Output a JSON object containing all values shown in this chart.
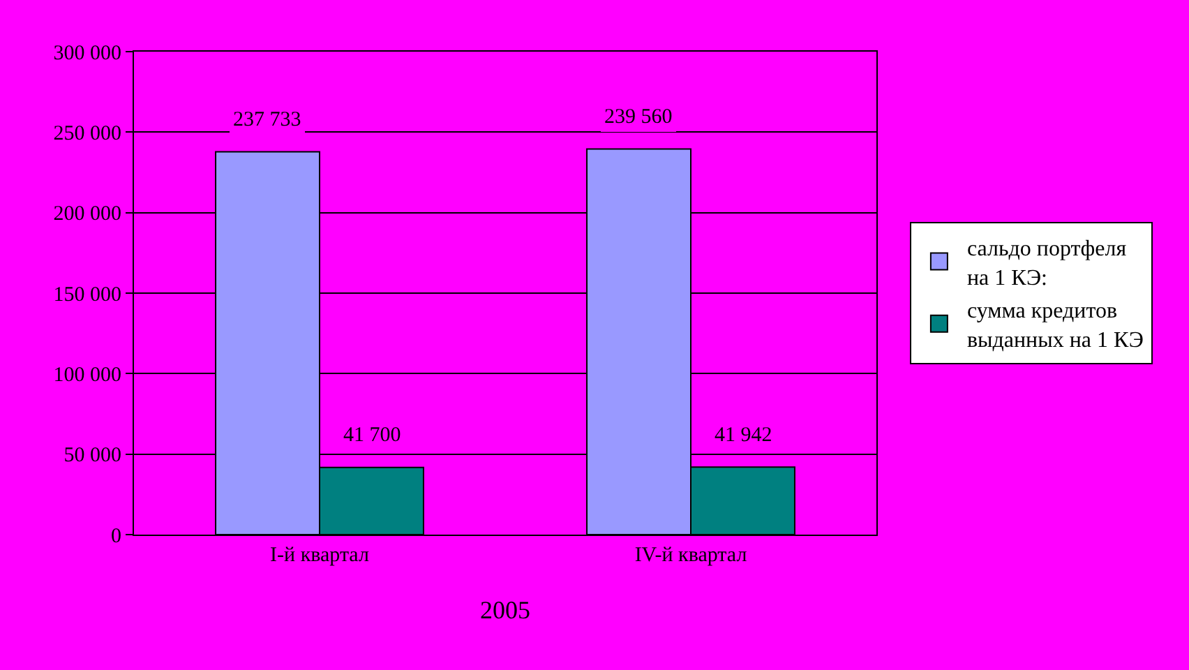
{
  "chart_data": {
    "type": "bar",
    "categories": [
      "I-й квартал",
      "IV-й квартал"
    ],
    "xlabel": "2005",
    "series": [
      {
        "name": "сальдо портфеля на 1 КЭ:",
        "color": "#9999ff",
        "values": [
          237733,
          239560
        ],
        "value_labels": [
          "237 733",
          "239 560"
        ]
      },
      {
        "name": "сумма кредитов выданных на 1 КЭ",
        "color": "#008080",
        "values": [
          41700,
          41942
        ],
        "value_labels": [
          "41 700",
          "41 942"
        ]
      }
    ],
    "ylim": [
      0,
      300000
    ],
    "yticks": [
      {
        "value": 0,
        "label": "0"
      },
      {
        "value": 50000,
        "label": "50 000"
      },
      {
        "value": 100000,
        "label": "100 000"
      },
      {
        "value": 150000,
        "label": "150 000"
      },
      {
        "value": 200000,
        "label": "200 000"
      },
      {
        "value": 250000,
        "label": "250 000"
      },
      {
        "value": 300000,
        "label": "300 000"
      }
    ],
    "grid": "y",
    "legend": "right"
  }
}
